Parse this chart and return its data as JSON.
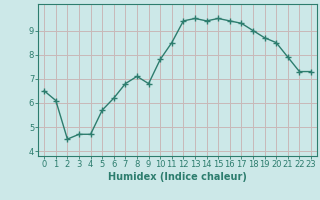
{
  "x": [
    0,
    1,
    2,
    3,
    4,
    5,
    6,
    7,
    8,
    9,
    10,
    11,
    12,
    13,
    14,
    15,
    16,
    17,
    18,
    19,
    20,
    21,
    22,
    23
  ],
  "y": [
    6.5,
    6.1,
    4.5,
    4.7,
    4.7,
    5.7,
    6.2,
    6.8,
    7.1,
    6.8,
    7.8,
    8.5,
    9.4,
    9.5,
    9.4,
    9.5,
    9.4,
    9.3,
    9.0,
    8.7,
    8.5,
    7.9,
    7.3,
    7.3
  ],
  "line_color": "#2d7d6e",
  "marker": "+",
  "marker_size": 4,
  "bg_color": "#cce8e8",
  "grid_color": "#c8b8b8",
  "xlabel": "Humidex (Indice chaleur)",
  "xlim": [
    -0.5,
    23.5
  ],
  "ylim": [
    3.8,
    10.1
  ],
  "yticks": [
    4,
    5,
    6,
    7,
    8,
    9
  ],
  "xticks": [
    0,
    1,
    2,
    3,
    4,
    5,
    6,
    7,
    8,
    9,
    10,
    11,
    12,
    13,
    14,
    15,
    16,
    17,
    18,
    19,
    20,
    21,
    22,
    23
  ],
  "xtick_labels": [
    "0",
    "1",
    "2",
    "3",
    "4",
    "5",
    "6",
    "7",
    "8",
    "9",
    "10",
    "11",
    "12",
    "13",
    "14",
    "15",
    "16",
    "17",
    "18",
    "19",
    "20",
    "21",
    "22",
    "23"
  ],
  "axis_label_fontsize": 7.0,
  "tick_fontsize": 6.0,
  "line_width": 1.0,
  "marker_linewidth": 1.0
}
